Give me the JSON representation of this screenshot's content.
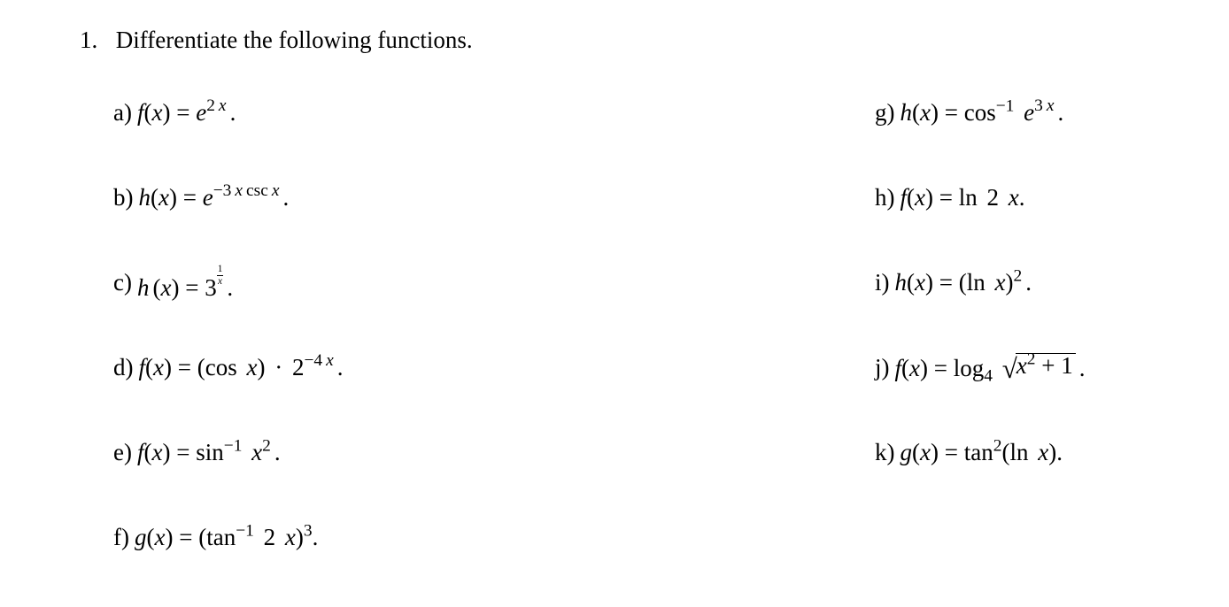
{
  "prompt": {
    "number": "1.",
    "text": "Differentiate the following functions."
  },
  "labels": {
    "a": "a)",
    "b": "b)",
    "c": "c)",
    "d": "d)",
    "e": "e)",
    "f": "f)",
    "g": "g)",
    "h": "h)",
    "i": "i)",
    "j": "j)",
    "k": "k)"
  },
  "math": {
    "f": "f",
    "h": "h",
    "g": "g",
    "x": "x",
    "eq": " = ",
    "e": "e",
    "two": "2",
    "three": "3",
    "four": "4",
    "m3": "−3",
    "m4": "−4",
    "m1": "−1",
    "csc": "csc",
    "cos": "cos",
    "sin": "sin",
    "tan": "tan",
    "ln": "ln",
    "log": "log",
    "one": "1",
    "dot": "·",
    "period": ".",
    "sq": "2",
    "cube": "3",
    "plus1": " + 1"
  }
}
